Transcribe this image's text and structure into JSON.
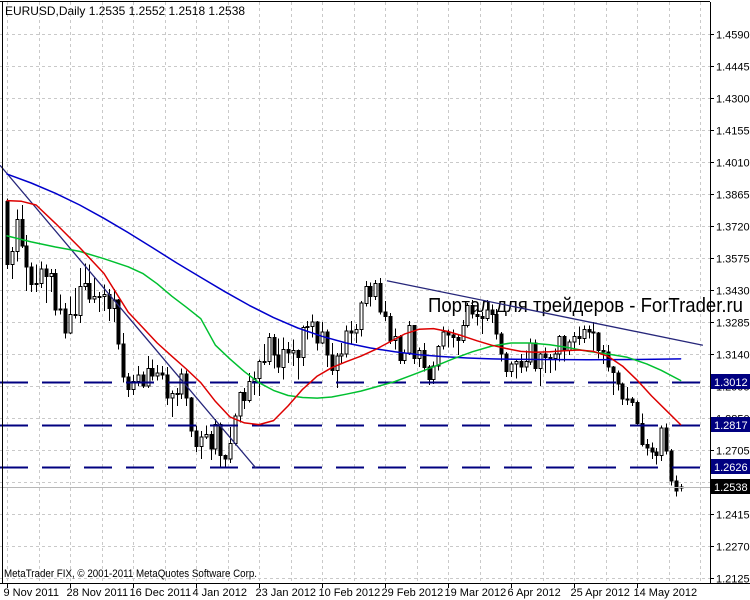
{
  "window": {
    "title_line": "EURUSD,Daily  1.2535 1.2552 1.2518 1.2538",
    "copyright": "MetaTrader FIX, © 2001-2011 MetaQuotes Software Corp.",
    "watermark": "Портал для трейдеров - ForTrader.ru"
  },
  "symbol": "EURUSD",
  "timeframe": "Daily",
  "current_bar": {
    "open": "1.2535",
    "high": "1.2552",
    "low": "1.2518",
    "close": "1.2538"
  },
  "colors": {
    "background": "#ffffff",
    "grid": "#c9c9c9",
    "border": "#000000",
    "candle_bull_fill": "#ffffff",
    "candle_bear_fill": "#000000",
    "candle_outline": "#000000",
    "ma_fast": "#dd0000",
    "ma_mid": "#00c030",
    "ma_slow": "#0000cc",
    "trendline": "#26267a",
    "level_line": "#000080",
    "level_badge_bg": "#000080",
    "current_badge_bg": "#000000",
    "badge_text": "#ffffff",
    "current_price_line": "#b8b8b8",
    "watermark_color": "#b9aeab",
    "axis_text": "#000000"
  },
  "chart_data": {
    "type": "candlestick",
    "title": "EURUSD,Daily",
    "grid": true,
    "legend_position": "none",
    "x_axis_labels": [
      "9 Nov 2011",
      "28 Nov 2011",
      "16 Dec 2011",
      "4 Jan 2012",
      "23 Jan 2012",
      "10 Feb 2012",
      "29 Feb 2012",
      "19 Mar 2012",
      "6 Apr 2012",
      "25 Apr 2012",
      "14 May 2012"
    ],
    "y_axis": {
      "max": 1.459,
      "min": 1.2125,
      "tick_step": 0.0145,
      "ticks": [
        "1.4590",
        "1.4445",
        "1.4300",
        "1.4155",
        "1.4010",
        "1.3865",
        "1.3720",
        "1.3575",
        "1.3430",
        "1.3285",
        "1.3140",
        "1.2995",
        "1.2850",
        "1.2705",
        "1.2560",
        "1.2415",
        "1.2270",
        "1.2125"
      ]
    },
    "levels": [
      {
        "price": 1.3012,
        "label": "1.3012"
      },
      {
        "price": 1.2817,
        "label": "1.2817"
      },
      {
        "price": 1.2626,
        "label": "1.2626"
      }
    ],
    "current_price": {
      "price": 1.2538,
      "label": "1.2538"
    },
    "trendlines": [
      {
        "from_bar": -1.45,
        "from_price": 1.3995,
        "to_bar": 51.4,
        "to_price": 1.2622
      },
      {
        "from_bar": 78.4,
        "from_price": 1.3472,
        "to_bar": 143.6,
        "to_price": 1.318
      }
    ],
    "overlays": {
      "ma_slow_blue": [
        [
          0,
          1.3955
        ],
        [
          5,
          1.3915
        ],
        [
          10,
          1.3868
        ],
        [
          15,
          1.3815
        ],
        [
          20,
          1.3755
        ],
        [
          25,
          1.369
        ],
        [
          30,
          1.3622
        ],
        [
          35,
          1.3553
        ],
        [
          40,
          1.3487
        ],
        [
          45,
          1.3422
        ],
        [
          50,
          1.336
        ],
        [
          55,
          1.3305
        ],
        [
          60,
          1.3258
        ],
        [
          65,
          1.322
        ],
        [
          70,
          1.319
        ],
        [
          75,
          1.3167
        ],
        [
          80,
          1.315
        ],
        [
          85,
          1.3137
        ],
        [
          90,
          1.3128
        ],
        [
          95,
          1.3122
        ],
        [
          100,
          1.3118
        ],
        [
          105,
          1.3116
        ],
        [
          110,
          1.3115
        ],
        [
          120,
          1.3114
        ],
        [
          130,
          1.3115
        ],
        [
          139,
          1.3118
        ]
      ],
      "ma_mid_green": [
        [
          0,
          1.3675
        ],
        [
          5,
          1.3648
        ],
        [
          10,
          1.3625
        ],
        [
          15,
          1.3605
        ],
        [
          20,
          1.3572
        ],
        [
          25,
          1.3535
        ],
        [
          28,
          1.3505
        ],
        [
          31,
          1.3458
        ],
        [
          34,
          1.3402
        ],
        [
          37,
          1.3352
        ],
        [
          40,
          1.33
        ],
        [
          43,
          1.318
        ],
        [
          46,
          1.3118
        ],
        [
          49,
          1.306
        ],
        [
          52,
          1.301
        ],
        [
          55,
          1.2975
        ],
        [
          58,
          1.2952
        ],
        [
          61,
          1.2943
        ],
        [
          64,
          1.294
        ],
        [
          67,
          1.2945
        ],
        [
          70,
          1.2958
        ],
        [
          73,
          1.2972
        ],
        [
          76,
          1.299
        ],
        [
          80,
          1.3015
        ],
        [
          84,
          1.3048
        ],
        [
          88,
          1.3082
        ],
        [
          92,
          1.3118
        ],
        [
          96,
          1.315
        ],
        [
          100,
          1.3176
        ],
        [
          104,
          1.319
        ],
        [
          108,
          1.319
        ],
        [
          112,
          1.3182
        ],
        [
          116,
          1.3168
        ],
        [
          120,
          1.3152
        ],
        [
          124,
          1.314
        ],
        [
          128,
          1.3125
        ],
        [
          132,
          1.3095
        ],
        [
          135,
          1.3066
        ],
        [
          139,
          1.302
        ]
      ],
      "ma_fast_red": [
        [
          0,
          1.3835
        ],
        [
          3,
          1.3832
        ],
        [
          6,
          1.3815
        ],
        [
          10,
          1.3732
        ],
        [
          15,
          1.3622
        ],
        [
          20,
          1.3505
        ],
        [
          25,
          1.333
        ],
        [
          28,
          1.326
        ],
        [
          31,
          1.319
        ],
        [
          34,
          1.313
        ],
        [
          37,
          1.3072
        ],
        [
          40,
          1.301
        ],
        [
          43,
          1.2925
        ],
        [
          46,
          1.2855
        ],
        [
          49,
          1.2828
        ],
        [
          52,
          1.282
        ],
        [
          55,
          1.2838
        ],
        [
          58,
          1.2905
        ],
        [
          61,
          1.298
        ],
        [
          64,
          1.304
        ],
        [
          67,
          1.3078
        ],
        [
          70,
          1.3105
        ],
        [
          73,
          1.313
        ],
        [
          76,
          1.316
        ],
        [
          79,
          1.3195
        ],
        [
          82,
          1.323
        ],
        [
          85,
          1.3252
        ],
        [
          88,
          1.3255
        ],
        [
          91,
          1.3242
        ],
        [
          94,
          1.3222
        ],
        [
          97,
          1.32
        ],
        [
          100,
          1.318
        ],
        [
          103,
          1.3165
        ],
        [
          106,
          1.3152
        ],
        [
          109,
          1.3148
        ],
        [
          112,
          1.315
        ],
        [
          115,
          1.3155
        ],
        [
          118,
          1.3158
        ],
        [
          121,
          1.3152
        ],
        [
          124,
          1.313
        ],
        [
          127,
          1.3085
        ],
        [
          130,
          1.3022
        ],
        [
          133,
          1.295
        ],
        [
          136,
          1.2885
        ],
        [
          139,
          1.282
        ]
      ]
    },
    "candles": [
      [
        1.383,
        1.3845,
        1.3525,
        1.3545
      ],
      [
        1.3545,
        1.3625,
        1.348,
        1.3605
      ],
      [
        1.3605,
        1.3795,
        1.356,
        1.375
      ],
      [
        1.375,
        1.3815,
        1.362,
        1.363
      ],
      [
        1.363,
        1.368,
        1.3425,
        1.3535
      ],
      [
        1.3535,
        1.3555,
        1.342,
        1.3455
      ],
      [
        1.3455,
        1.3545,
        1.342,
        1.346
      ],
      [
        1.346,
        1.356,
        1.344,
        1.3525
      ],
      [
        1.3525,
        1.3545,
        1.337,
        1.349
      ],
      [
        1.349,
        1.3525,
        1.342,
        1.3505
      ],
      [
        1.3505,
        1.3525,
        1.3315,
        1.334
      ],
      [
        1.334,
        1.341,
        1.332,
        1.3345
      ],
      [
        1.3345,
        1.337,
        1.321,
        1.3235
      ],
      [
        1.3235,
        1.34,
        1.323,
        1.332
      ],
      [
        1.332,
        1.344,
        1.33,
        1.3315
      ],
      [
        1.3315,
        1.353,
        1.328,
        1.3445
      ],
      [
        1.3445,
        1.355,
        1.343,
        1.346
      ],
      [
        1.346,
        1.3545,
        1.337,
        1.339
      ],
      [
        1.339,
        1.3485,
        1.337,
        1.34
      ],
      [
        1.34,
        1.342,
        1.333,
        1.34
      ],
      [
        1.34,
        1.3455,
        1.3335,
        1.341
      ],
      [
        1.341,
        1.3435,
        1.329,
        1.3345
      ],
      [
        1.3345,
        1.3435,
        1.3285,
        1.3385
      ],
      [
        1.3385,
        1.339,
        1.316,
        1.3185
      ],
      [
        1.3185,
        1.3235,
        1.301,
        1.3035
      ],
      [
        1.3035,
        1.3055,
        1.2945,
        1.298
      ],
      [
        1.298,
        1.3045,
        1.2955,
        1.3015
      ],
      [
        1.3015,
        1.3085,
        1.2995,
        1.3045
      ],
      [
        1.3045,
        1.306,
        1.2985,
        1.2995
      ],
      [
        1.2995,
        1.313,
        1.2985,
        1.3075
      ],
      [
        1.3075,
        1.3115,
        1.302,
        1.304
      ],
      [
        1.304,
        1.309,
        1.302,
        1.3055
      ],
      [
        1.3055,
        1.3085,
        1.3025,
        1.3045
      ],
      [
        1.3045,
        1.308,
        1.291,
        1.294
      ],
      [
        1.294,
        1.2975,
        1.2855,
        1.296
      ],
      [
        1.296,
        1.2985,
        1.2905,
        1.296
      ],
      [
        1.296,
        1.3075,
        1.2935,
        1.305
      ],
      [
        1.305,
        1.3065,
        1.2905,
        1.294
      ],
      [
        1.294,
        1.2945,
        1.2765,
        1.279
      ],
      [
        1.279,
        1.2815,
        1.2695,
        1.272
      ],
      [
        1.272,
        1.279,
        1.2665,
        1.2765
      ],
      [
        1.2765,
        1.2815,
        1.2755,
        1.2775
      ],
      [
        1.2775,
        1.279,
        1.266,
        1.271
      ],
      [
        1.271,
        1.2845,
        1.2685,
        1.282
      ],
      [
        1.282,
        1.283,
        1.2625,
        1.268
      ],
      [
        1.268,
        1.2685,
        1.2625,
        1.2665
      ],
      [
        1.2665,
        1.281,
        1.2645,
        1.2735
      ],
      [
        1.2735,
        1.287,
        1.2725,
        1.286
      ],
      [
        1.286,
        1.297,
        1.283,
        1.2965
      ],
      [
        1.2965,
        1.2985,
        1.289,
        1.293
      ],
      [
        1.293,
        1.3055,
        1.292,
        1.3015
      ],
      [
        1.3015,
        1.306,
        1.2955,
        1.303
      ],
      [
        1.303,
        1.3115,
        1.295,
        1.3105
      ],
      [
        1.3105,
        1.3185,
        1.309,
        1.3105
      ],
      [
        1.3105,
        1.3235,
        1.309,
        1.3215
      ],
      [
        1.3215,
        1.323,
        1.3075,
        1.3135
      ],
      [
        1.3135,
        1.321,
        1.3055,
        1.308
      ],
      [
        1.308,
        1.3215,
        1.3025,
        1.316
      ],
      [
        1.316,
        1.3195,
        1.31,
        1.3145
      ],
      [
        1.3145,
        1.3205,
        1.3085,
        1.3155
      ],
      [
        1.3155,
        1.316,
        1.3025,
        1.3125
      ],
      [
        1.3125,
        1.327,
        1.3085,
        1.326
      ],
      [
        1.326,
        1.329,
        1.3205,
        1.3265
      ],
      [
        1.3265,
        1.332,
        1.3215,
        1.3285
      ],
      [
        1.3285,
        1.329,
        1.3155,
        1.319
      ],
      [
        1.319,
        1.3285,
        1.3185,
        1.324
      ],
      [
        1.324,
        1.325,
        1.308,
        1.3135
      ],
      [
        1.3135,
        1.319,
        1.3045,
        1.3065
      ],
      [
        1.3065,
        1.3145,
        1.2985,
        1.313
      ],
      [
        1.313,
        1.319,
        1.3095,
        1.314
      ],
      [
        1.314,
        1.327,
        1.3125,
        1.3245
      ],
      [
        1.3245,
        1.329,
        1.3185,
        1.3235
      ],
      [
        1.3235,
        1.3275,
        1.319,
        1.325
      ],
      [
        1.325,
        1.338,
        1.322,
        1.337
      ],
      [
        1.337,
        1.347,
        1.3355,
        1.3445
      ],
      [
        1.3445,
        1.3465,
        1.3355,
        1.34
      ],
      [
        1.34,
        1.3475,
        1.3385,
        1.346
      ],
      [
        1.346,
        1.3485,
        1.332,
        1.333
      ],
      [
        1.333,
        1.338,
        1.329,
        1.331
      ],
      [
        1.331,
        1.3325,
        1.3185,
        1.32
      ],
      [
        1.32,
        1.3255,
        1.316,
        1.322
      ],
      [
        1.322,
        1.3225,
        1.3095,
        1.311
      ],
      [
        1.311,
        1.316,
        1.3095,
        1.3145
      ],
      [
        1.3145,
        1.329,
        1.3135,
        1.327
      ],
      [
        1.327,
        1.327,
        1.3095,
        1.312
      ],
      [
        1.312,
        1.317,
        1.308,
        1.3155
      ],
      [
        1.3155,
        1.319,
        1.306,
        1.308
      ],
      [
        1.308,
        1.309,
        1.3,
        1.3025
      ],
      [
        1.3025,
        1.3105,
        1.3005,
        1.3085
      ],
      [
        1.3085,
        1.318,
        1.3065,
        1.3175
      ],
      [
        1.3175,
        1.3265,
        1.316,
        1.324
      ],
      [
        1.324,
        1.325,
        1.317,
        1.3225
      ],
      [
        1.3225,
        1.325,
        1.317,
        1.3215
      ],
      [
        1.3215,
        1.3225,
        1.3135,
        1.32
      ],
      [
        1.32,
        1.3295,
        1.319,
        1.327
      ],
      [
        1.327,
        1.337,
        1.326,
        1.336
      ],
      [
        1.336,
        1.3385,
        1.33,
        1.332
      ],
      [
        1.332,
        1.336,
        1.327,
        1.331
      ],
      [
        1.331,
        1.333,
        1.323,
        1.33
      ],
      [
        1.33,
        1.3385,
        1.329,
        1.334
      ],
      [
        1.334,
        1.3365,
        1.328,
        1.332
      ],
      [
        1.332,
        1.3345,
        1.3205,
        1.323
      ],
      [
        1.323,
        1.324,
        1.3105,
        1.314
      ],
      [
        1.314,
        1.315,
        1.3035,
        1.306
      ],
      [
        1.306,
        1.3105,
        1.3035,
        1.3095
      ],
      [
        1.3095,
        1.312,
        1.303,
        1.3105
      ],
      [
        1.3105,
        1.314,
        1.3055,
        1.308
      ],
      [
        1.308,
        1.3155,
        1.306,
        1.3105
      ],
      [
        1.3105,
        1.321,
        1.309,
        1.319
      ],
      [
        1.319,
        1.3205,
        1.306,
        1.3075
      ],
      [
        1.3075,
        1.3145,
        1.2995,
        1.314
      ],
      [
        1.314,
        1.317,
        1.3055,
        1.3125
      ],
      [
        1.3125,
        1.314,
        1.3055,
        1.312
      ],
      [
        1.312,
        1.3165,
        1.3065,
        1.314
      ],
      [
        1.314,
        1.3225,
        1.3105,
        1.322
      ],
      [
        1.322,
        1.3225,
        1.3105,
        1.3155
      ],
      [
        1.3155,
        1.3205,
        1.3135,
        1.3195
      ],
      [
        1.3195,
        1.324,
        1.3155,
        1.322
      ],
      [
        1.322,
        1.3265,
        1.318,
        1.321
      ],
      [
        1.321,
        1.327,
        1.319,
        1.325
      ],
      [
        1.325,
        1.327,
        1.321,
        1.324
      ],
      [
        1.324,
        1.3285,
        1.3155,
        1.3235
      ],
      [
        1.3235,
        1.324,
        1.312,
        1.3155
      ],
      [
        1.3155,
        1.318,
        1.3095,
        1.315
      ],
      [
        1.315,
        1.318,
        1.306,
        1.308
      ],
      [
        1.308,
        1.3085,
        1.2955,
        1.3055
      ],
      [
        1.3055,
        1.3065,
        1.2975,
        1.3005
      ],
      [
        1.3005,
        1.301,
        1.291,
        1.2935
      ],
      [
        1.2935,
        1.299,
        1.291,
        1.2935
      ],
      [
        1.2935,
        1.2945,
        1.2905,
        1.292
      ],
      [
        1.292,
        1.293,
        1.2815,
        1.2825
      ],
      [
        1.2825,
        1.287,
        1.272,
        1.273
      ],
      [
        1.273,
        1.2755,
        1.268,
        1.2715
      ],
      [
        1.2715,
        1.274,
        1.2665,
        1.2695
      ],
      [
        1.2695,
        1.2715,
        1.264,
        1.268
      ],
      [
        1.268,
        1.2815,
        1.2655,
        1.2805
      ],
      [
        1.2805,
        1.2825,
        1.2685,
        1.27
      ],
      [
        1.27,
        1.271,
        1.2545,
        1.2565
      ],
      [
        1.2565,
        1.259,
        1.2495,
        1.252
      ],
      [
        1.2535,
        1.2552,
        1.2518,
        1.2538
      ]
    ]
  }
}
